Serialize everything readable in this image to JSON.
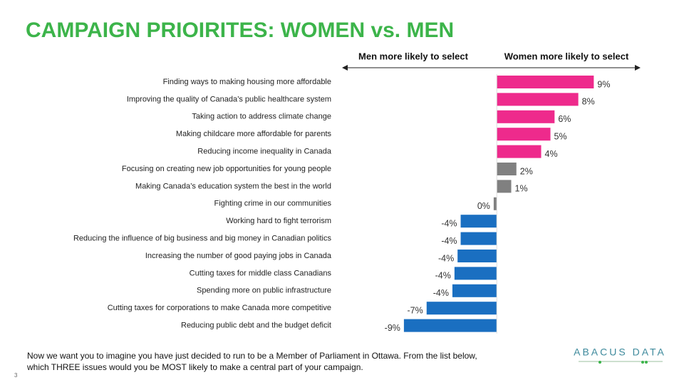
{
  "chart_data": {
    "type": "bar",
    "orientation": "horizontal",
    "title": "CAMPAIGN PRIOIRITES: WOMEN vs. MEN",
    "left_label": "Men more likely to select",
    "right_label": "Women more likely to select",
    "categories": [
      "Finding ways to making housing more affordable",
      "Improving the quality of Canada’s public healthcare system",
      "Taking action to address climate change",
      "Making childcare more affordable for parents",
      "Reducing income inequality in Canada",
      "Focusing on creating new job opportunities for young people",
      "Making Canada’s education system the best in the world",
      "Fighting crime in our communities",
      "Working hard to fight terrorism",
      "Reducing the influence of big business and big money in Canadian politics",
      "Increasing the number of good paying jobs in Canada",
      "Cutting taxes for middle class Canadians",
      "Spending more on public infrastructure",
      "Cutting taxes for corporations to make Canada more competitive",
      "Reducing public debt and the budget deficit"
    ],
    "values": [
      9.4,
      7.9,
      5.6,
      5.2,
      4.3,
      1.9,
      1.4,
      -0.3,
      -3.5,
      -3.5,
      -3.8,
      -4.1,
      -4.3,
      -6.8,
      -9.0
    ],
    "value_labels": [
      "9%",
      "8%",
      "6%",
      "5%",
      "4%",
      "2%",
      "1%",
      "0%",
      "-4%",
      "-4%",
      "-4%",
      "-4%",
      "-4%",
      "-7%",
      "-9%"
    ],
    "colors": [
      "#ee2a8c",
      "#ee2a8c",
      "#ee2a8c",
      "#ee2a8c",
      "#ee2a8c",
      "#808080",
      "#808080",
      "#808080",
      "#1a6fc1",
      "#1a6fc1",
      "#1a6fc1",
      "#1a6fc1",
      "#1a6fc1",
      "#1a6fc1",
      "#1a6fc1"
    ],
    "xlim": [
      -15,
      14
    ],
    "footnote": "Now we want you to imagine you have just decided to run to be a Member of Parliament in Ottawa. From the list below, which THREE  issues would you be MOST likely to make a central part of your campaign.",
    "page_number": "3",
    "logo": "ABACUS DATA"
  }
}
